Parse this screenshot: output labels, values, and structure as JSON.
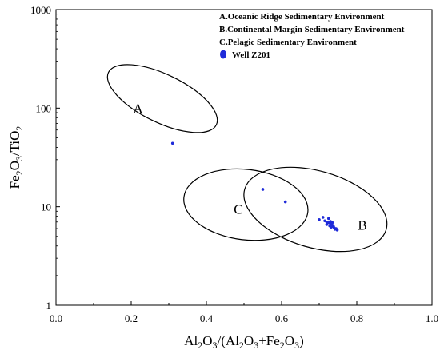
{
  "chart_data": {
    "type": "scatter",
    "xlim": [
      0.0,
      1.0
    ],
    "ylim": [
      1,
      1000
    ],
    "yscale": "log",
    "x_ticks": [
      "0.0",
      "0.2",
      "0.4",
      "0.6",
      "0.8",
      "1.0"
    ],
    "y_ticks": [
      "1",
      "10",
      "100",
      "1000"
    ],
    "xlabel": {
      "parts": [
        "Al",
        "2",
        "O",
        "3",
        "/(Al",
        "2",
        "O",
        "3",
        "+Fe",
        "2",
        "O",
        "3",
        ")"
      ]
    },
    "ylabel": {
      "parts": [
        "Fe",
        "2",
        "O",
        "3",
        "/TiO",
        "2"
      ]
    },
    "legend": {
      "position": "top-right",
      "entries": [
        "A.Oceanic Ridge Sedimentary Environment",
        "B.Continental Margin Sedimentary Environment",
        "C.Pelagic Sedimentary Environment"
      ],
      "series_label": "Well Z201"
    },
    "regions": [
      {
        "label": "A",
        "cx": 0.283,
        "cy": 125,
        "rx_pts": [
          0.08,
          120
        ],
        "label_at": [
          0.218,
          100
        ]
      },
      {
        "label": "C",
        "cx": 0.505,
        "cy": 10.5,
        "label_at": [
          0.485,
          9.5
        ]
      },
      {
        "label": "B",
        "cx": 0.69,
        "cy": 9.4,
        "label_at": [
          0.815,
          6.5
        ]
      }
    ],
    "series": [
      {
        "name": "Well Z201",
        "color": "#1f2bd9",
        "points": [
          [
            0.31,
            44
          ],
          [
            0.55,
            15
          ],
          [
            0.61,
            11.2
          ],
          [
            0.7,
            7.4
          ],
          [
            0.71,
            7.8
          ],
          [
            0.715,
            7.2
          ],
          [
            0.72,
            7.0
          ],
          [
            0.72,
            6.6
          ],
          [
            0.725,
            7.6
          ],
          [
            0.725,
            6.9
          ],
          [
            0.728,
            6.4
          ],
          [
            0.73,
            7.1
          ],
          [
            0.73,
            6.7
          ],
          [
            0.732,
            6.2
          ],
          [
            0.735,
            6.5
          ],
          [
            0.735,
            6.9
          ],
          [
            0.738,
            6.3
          ],
          [
            0.74,
            6.1
          ],
          [
            0.742,
            5.9
          ],
          [
            0.745,
            6.0
          ],
          [
            0.748,
            5.8
          ]
        ]
      }
    ]
  }
}
